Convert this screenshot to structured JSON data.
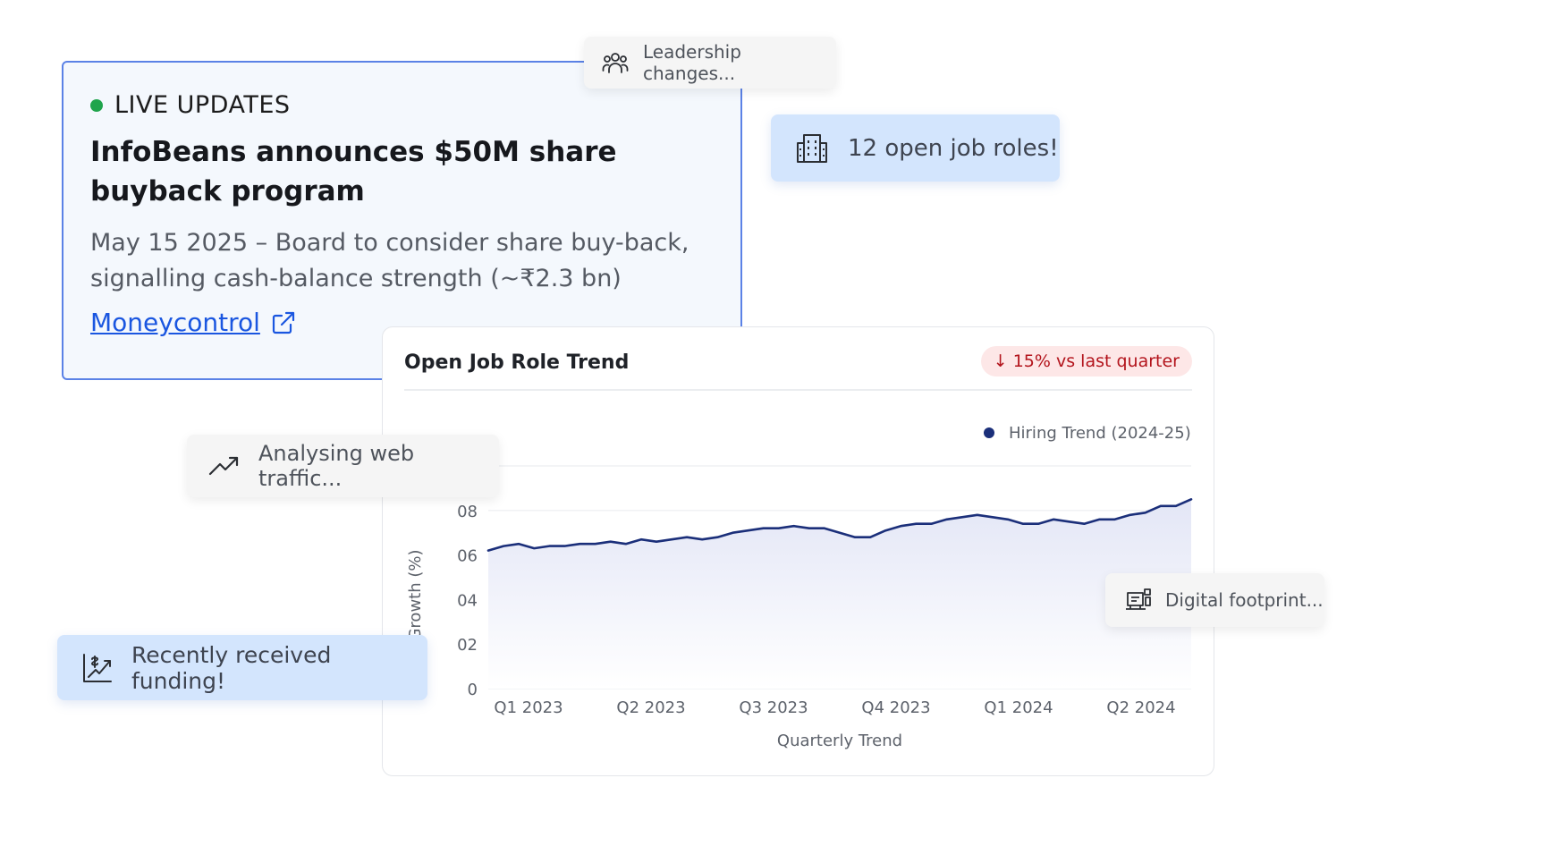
{
  "news": {
    "live_label": "LIVE UPDATES",
    "title": "InfoBeans announces $50M share buyback program",
    "description": "May 15 2025 – Board to consider share buy-back, signalling cash-balance strength (~₹2.3 bn)",
    "source_link": "Moneycontrol",
    "live_color": "#1fa44c"
  },
  "pills": {
    "leadership": {
      "text": "Leadership changes...",
      "icon": "people-group-icon"
    },
    "jobs": {
      "text": "12 open job roles!",
      "icon": "building-icon"
    },
    "traffic": {
      "text": "Analysing web traffic...",
      "icon": "trending-up-icon"
    },
    "funding": {
      "text": "Recently received funding!",
      "icon": "funding-chart-icon"
    },
    "digital": {
      "text": "Digital footprint...",
      "icon": "digital-devices-icon"
    }
  },
  "chart_card": {
    "title": "Open Job Role Trend",
    "badge_arrow": "↓",
    "badge_text": "15% vs last quarter"
  },
  "chart_data": {
    "type": "area",
    "legend": {
      "label": "Hiring Trend (2024-25)",
      "color": "#1b2f7a",
      "placement": "top-right"
    },
    "xlabel": "Quarterly Trend",
    "ylabel": "Growth (%)",
    "x_ticks": [
      "Q1 2023",
      "Q2 2023",
      "Q3 2023",
      "Q4 2023",
      "Q1 2024",
      "Q2 2024"
    ],
    "y_ticks": [
      "0",
      "02",
      "04",
      "06",
      "08"
    ],
    "ylim": [
      0,
      10
    ],
    "grid": true,
    "values": [
      6.2,
      6.4,
      6.5,
      6.3,
      6.4,
      6.4,
      6.5,
      6.5,
      6.6,
      6.5,
      6.7,
      6.6,
      6.7,
      6.8,
      6.7,
      6.8,
      7.0,
      7.1,
      7.2,
      7.2,
      7.3,
      7.2,
      7.2,
      7.0,
      6.8,
      6.8,
      7.1,
      7.3,
      7.4,
      7.4,
      7.6,
      7.7,
      7.8,
      7.7,
      7.6,
      7.4,
      7.4,
      7.6,
      7.5,
      7.4,
      7.6,
      7.6,
      7.8,
      7.9,
      8.2,
      8.2,
      8.5
    ]
  }
}
